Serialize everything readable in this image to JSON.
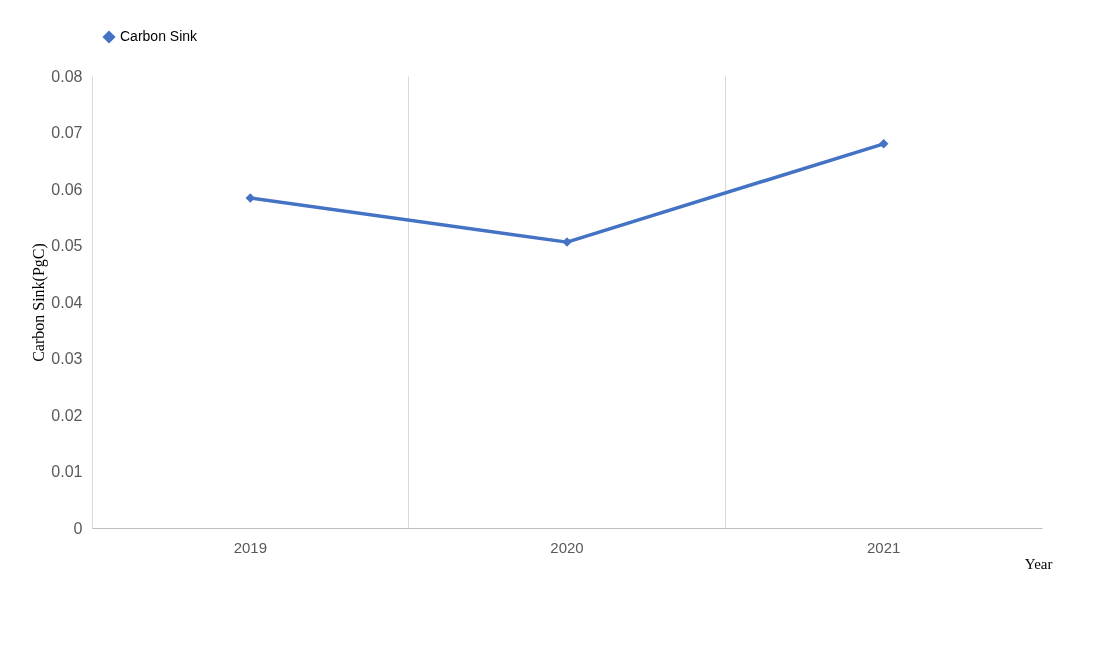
{
  "chart_data": {
    "type": "line",
    "xlabel": "Year",
    "ylabel": "Carbon Sink(PgC)",
    "categories": [
      "2019",
      "2020",
      "2021"
    ],
    "series": [
      {
        "name": "Carbon Sink",
        "color": "#4472c4",
        "values": [
          0.0584,
          0.0506,
          0.068
        ]
      }
    ],
    "ylim": [
      0,
      0.08
    ],
    "yticks": [
      0,
      0.01,
      0.02,
      0.03,
      0.04,
      0.05,
      0.06,
      0.07,
      0.08
    ],
    "grid": "x",
    "legend": "top",
    "marker": "diamond",
    "line_style": "solid"
  }
}
